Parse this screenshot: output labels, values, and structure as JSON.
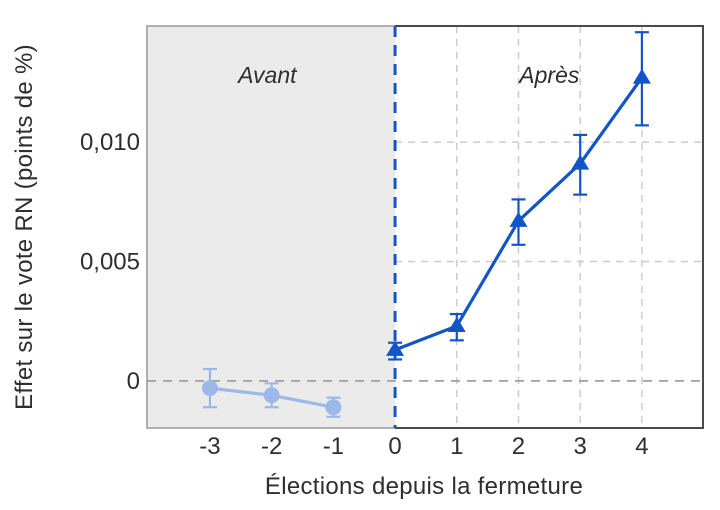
{
  "chart_data": {
    "type": "line",
    "title": "",
    "xlabel": "Élections depuis la fermeture",
    "ylabel": "Effet sur le vote RN (points de %)",
    "xlim": [
      -4.02,
      4.99
    ],
    "ylim": [
      -0.00197,
      0.01486
    ],
    "x_ticks": [
      {
        "value": -3,
        "label": "-3"
      },
      {
        "value": -2,
        "label": "-2"
      },
      {
        "value": -1,
        "label": "-1"
      },
      {
        "value": 0,
        "label": "0"
      },
      {
        "value": 1,
        "label": "1"
      },
      {
        "value": 2,
        "label": "2"
      },
      {
        "value": 3,
        "label": "3"
      },
      {
        "value": 4,
        "label": "4"
      }
    ],
    "y_ticks": [
      {
        "value": 0,
        "label": "0"
      },
      {
        "value": 0.005,
        "label": "0,005"
      },
      {
        "value": 0.01,
        "label": "0,010"
      }
    ],
    "grid": "dashed gridlines in post-period region only; dashed zero line across full width",
    "legend_position": "none",
    "event_line_x": 0,
    "shaded_region": {
      "from_x": -4.02,
      "to_x": 0,
      "color": "#ebebeb"
    },
    "annotations": [
      {
        "text": "Avant",
        "x": -2.07,
        "y": 0.0128,
        "style": "italic"
      },
      {
        "text": "Après",
        "x": 2.5,
        "y": 0.0128,
        "style": "italic"
      }
    ],
    "series": [
      {
        "name": "Avant",
        "marker": "circle",
        "color": "#9cb8e8",
        "x": [
          -3,
          -2,
          -1
        ],
        "y": [
          -0.0003,
          -0.0006,
          -0.0011
        ],
        "ci_low": [
          -0.0011,
          -0.0011,
          -0.0015
        ],
        "ci_high": [
          0.0005,
          -0.0001,
          -0.0007
        ]
      },
      {
        "name": "Après",
        "marker": "triangle",
        "color": "#1255c8",
        "x": [
          0,
          1,
          2,
          3,
          4
        ],
        "y": [
          0.0013,
          0.0023,
          0.0067,
          0.0091,
          0.0127
        ],
        "ci_low": [
          0.0009,
          0.0017,
          0.0057,
          0.0078,
          0.0107
        ],
        "ci_high": [
          0.0016,
          0.0028,
          0.0076,
          0.0103,
          0.0146
        ]
      }
    ],
    "colors": {
      "post_blue": "#1255c8",
      "pre_light_blue": "#9cb8e8",
      "shaded_region": "#ebebeb",
      "gridline": "#cccccc",
      "zero_line": "#999999",
      "dark_border": "#4a4a4a",
      "light_border": "#9a9a9a",
      "text": "#2e2e2e"
    }
  }
}
